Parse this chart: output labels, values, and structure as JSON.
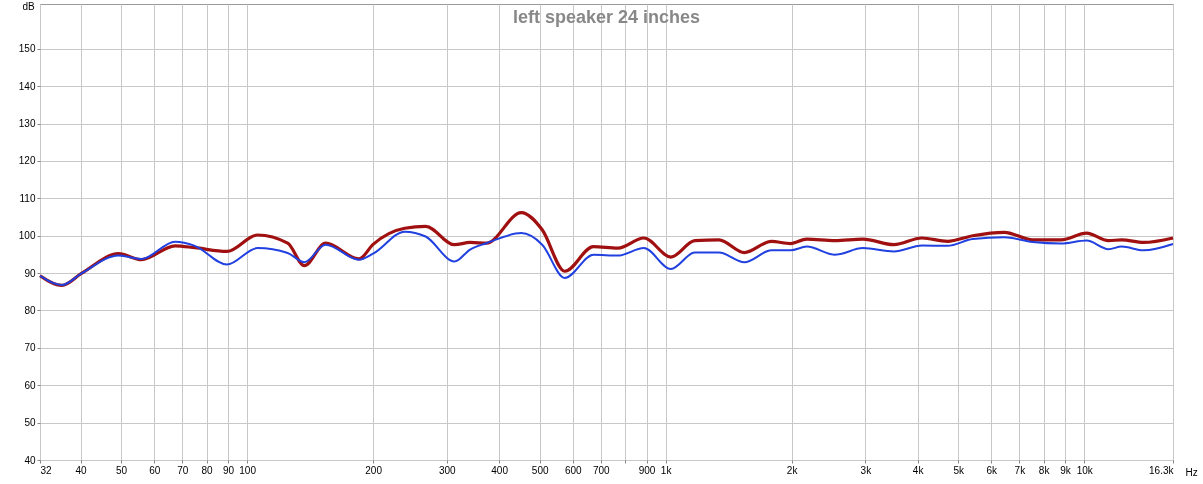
{
  "chart_data": {
    "type": "line",
    "title": "left speaker 24 inches",
    "xlabel": "Hz",
    "ylabel": "dB",
    "log": "x",
    "grid": true,
    "legend": false,
    "marker": "none",
    "line_style": "solid",
    "x": [
      32,
      36.1,
      40.2,
      49.3,
      55.9,
      67.3,
      75,
      89.5,
      105.9,
      125,
      137,
      154,
      185,
      200,
      238,
      267,
      313,
      341,
      373,
      452,
      507,
      574,
      672,
      769,
      887,
      1029,
      1174,
      1341,
      1542,
      1789,
      1988,
      2173,
      2537,
      2960,
      3509,
      4096,
      4712,
      5416,
      6441,
      7536,
      8815,
      10132,
      11426,
      12290,
      13860,
      16300
    ],
    "series": [
      {
        "color": "#a01010",
        "values": [
          89.3,
          86.7,
          89.9,
          95.2,
          93.6,
          97.3,
          96.8,
          95.8,
          100.2,
          98,
          92,
          98,
          93.8,
          97.7,
          102,
          102.5,
          97.6,
          98.2,
          98,
          106.2,
          101.6,
          90.5,
          97.1,
          96.7,
          99.4,
          94.3,
          98.7,
          98.9,
          95.5,
          98.5,
          97.9,
          99.1,
          98.7,
          99.1,
          97.6,
          99.4,
          98.5,
          100,
          100.9,
          98.9,
          98.9,
          100.7,
          98.7,
          98.9,
          98.2,
          99.4
        ]
      },
      {
        "color": "#2040e0",
        "values": [
          89.3,
          86.8,
          89.9,
          94.7,
          93.8,
          98.4,
          97.3,
          92.3,
          96.7,
          95.4,
          92.9,
          97.6,
          93.6,
          95.2,
          101.1,
          99.8,
          93.1,
          96.3,
          98,
          100.7,
          97.6,
          88.7,
          94.9,
          94.7,
          96.7,
          91.1,
          95.5,
          95.5,
          92.9,
          96.1,
          96.1,
          97.1,
          94.9,
          96.7,
          95.8,
          97.4,
          97.3,
          99.1,
          99.6,
          98.3,
          97.9,
          98.7,
          96.4,
          97.1,
          96.1,
          97.8
        ]
      }
    ],
    "xlim": [
      32,
      16300
    ],
    "xticks": [
      32,
      40,
      50,
      60,
      70,
      80,
      90,
      100,
      200,
      300,
      400,
      500,
      600,
      700,
      {
        "value": 800,
        "label": null
      },
      900,
      {
        "value": 1000,
        "label": "1k"
      },
      {
        "value": 2000,
        "label": "2k"
      },
      {
        "value": 3000,
        "label": "3k"
      },
      {
        "value": 4000,
        "label": "4k"
      },
      {
        "value": 5000,
        "label": "5k"
      },
      {
        "value": 6000,
        "label": "6k"
      },
      {
        "value": 7000,
        "label": "7k"
      },
      {
        "value": 8000,
        "label": "8k"
      },
      {
        "value": 9000,
        "label": "9k"
      },
      {
        "value": 10000,
        "label": "10k"
      },
      {
        "value": 16300,
        "label": "16.3k"
      }
    ],
    "ylim": [
      40,
      162
    ],
    "yticks": [
      40,
      50,
      60,
      70,
      80,
      90,
      100,
      110,
      120,
      130,
      140,
      150
    ]
  }
}
